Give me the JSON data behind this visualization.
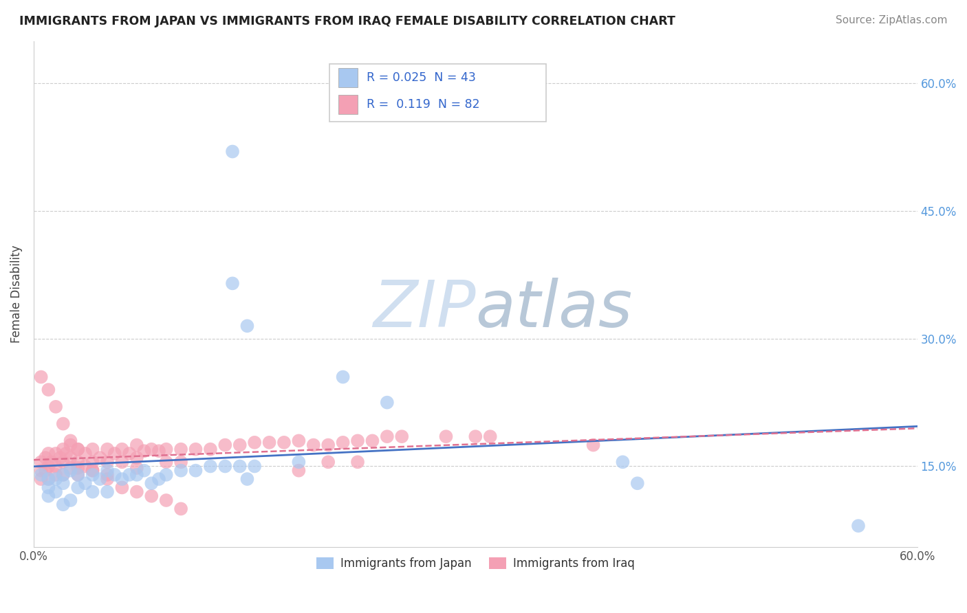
{
  "title": "IMMIGRANTS FROM JAPAN VS IMMIGRANTS FROM IRAQ FEMALE DISABILITY CORRELATION CHART",
  "source": "Source: ZipAtlas.com",
  "ylabel": "Female Disability",
  "xlim": [
    0.0,
    0.6
  ],
  "ylim": [
    0.055,
    0.65
  ],
  "ytick_vals": [
    0.15,
    0.3,
    0.45,
    0.6
  ],
  "r_japan": 0.025,
  "n_japan": 43,
  "r_iraq": 0.119,
  "n_iraq": 82,
  "japan_color": "#a8c8f0",
  "iraq_color": "#f4a0b4",
  "japan_line_color": "#4472c4",
  "iraq_line_color": "#e07090",
  "watermark_color": "#d0dff0",
  "legend_label_japan": "Immigrants from Japan",
  "legend_label_iraq": "Immigrants from Iraq",
  "japan_scatter_x": [
    0.135,
    0.135,
    0.145,
    0.005,
    0.01,
    0.01,
    0.01,
    0.015,
    0.015,
    0.02,
    0.02,
    0.02,
    0.025,
    0.025,
    0.03,
    0.03,
    0.035,
    0.04,
    0.04,
    0.045,
    0.05,
    0.05,
    0.055,
    0.06,
    0.065,
    0.07,
    0.075,
    0.08,
    0.085,
    0.09,
    0.1,
    0.11,
    0.12,
    0.13,
    0.14,
    0.15,
    0.18,
    0.4,
    0.41,
    0.56,
    0.21,
    0.24,
    0.145
  ],
  "japan_scatter_y": [
    0.52,
    0.365,
    0.315,
    0.14,
    0.135,
    0.125,
    0.115,
    0.135,
    0.12,
    0.14,
    0.13,
    0.105,
    0.145,
    0.11,
    0.14,
    0.125,
    0.13,
    0.14,
    0.12,
    0.135,
    0.145,
    0.12,
    0.14,
    0.135,
    0.14,
    0.14,
    0.145,
    0.13,
    0.135,
    0.14,
    0.145,
    0.145,
    0.15,
    0.15,
    0.15,
    0.15,
    0.155,
    0.155,
    0.13,
    0.08,
    0.255,
    0.225,
    0.135
  ],
  "iraq_scatter_x": [
    0.005,
    0.005,
    0.005,
    0.008,
    0.008,
    0.01,
    0.01,
    0.01,
    0.012,
    0.015,
    0.015,
    0.015,
    0.018,
    0.02,
    0.02,
    0.02,
    0.022,
    0.025,
    0.025,
    0.025,
    0.03,
    0.03,
    0.03,
    0.03,
    0.035,
    0.035,
    0.04,
    0.04,
    0.04,
    0.045,
    0.05,
    0.05,
    0.05,
    0.055,
    0.06,
    0.06,
    0.065,
    0.07,
    0.07,
    0.07,
    0.075,
    0.08,
    0.085,
    0.09,
    0.09,
    0.1,
    0.1,
    0.11,
    0.12,
    0.13,
    0.14,
    0.15,
    0.16,
    0.17,
    0.18,
    0.19,
    0.2,
    0.21,
    0.22,
    0.23,
    0.24,
    0.25,
    0.28,
    0.3,
    0.31,
    0.005,
    0.01,
    0.015,
    0.02,
    0.025,
    0.03,
    0.04,
    0.05,
    0.06,
    0.07,
    0.08,
    0.09,
    0.1,
    0.38,
    0.18,
    0.2,
    0.22
  ],
  "iraq_scatter_y": [
    0.155,
    0.145,
    0.135,
    0.16,
    0.145,
    0.165,
    0.15,
    0.135,
    0.155,
    0.165,
    0.15,
    0.14,
    0.16,
    0.17,
    0.155,
    0.14,
    0.165,
    0.175,
    0.16,
    0.148,
    0.17,
    0.155,
    0.148,
    0.14,
    0.165,
    0.15,
    0.17,
    0.155,
    0.145,
    0.16,
    0.17,
    0.155,
    0.14,
    0.165,
    0.17,
    0.155,
    0.165,
    0.175,
    0.16,
    0.148,
    0.168,
    0.17,
    0.168,
    0.17,
    0.155,
    0.17,
    0.155,
    0.17,
    0.17,
    0.175,
    0.175,
    0.178,
    0.178,
    0.178,
    0.18,
    0.175,
    0.175,
    0.178,
    0.18,
    0.18,
    0.185,
    0.185,
    0.185,
    0.185,
    0.185,
    0.255,
    0.24,
    0.22,
    0.2,
    0.18,
    0.17,
    0.145,
    0.135,
    0.125,
    0.12,
    0.115,
    0.11,
    0.1,
    0.175,
    0.145,
    0.155,
    0.155
  ]
}
